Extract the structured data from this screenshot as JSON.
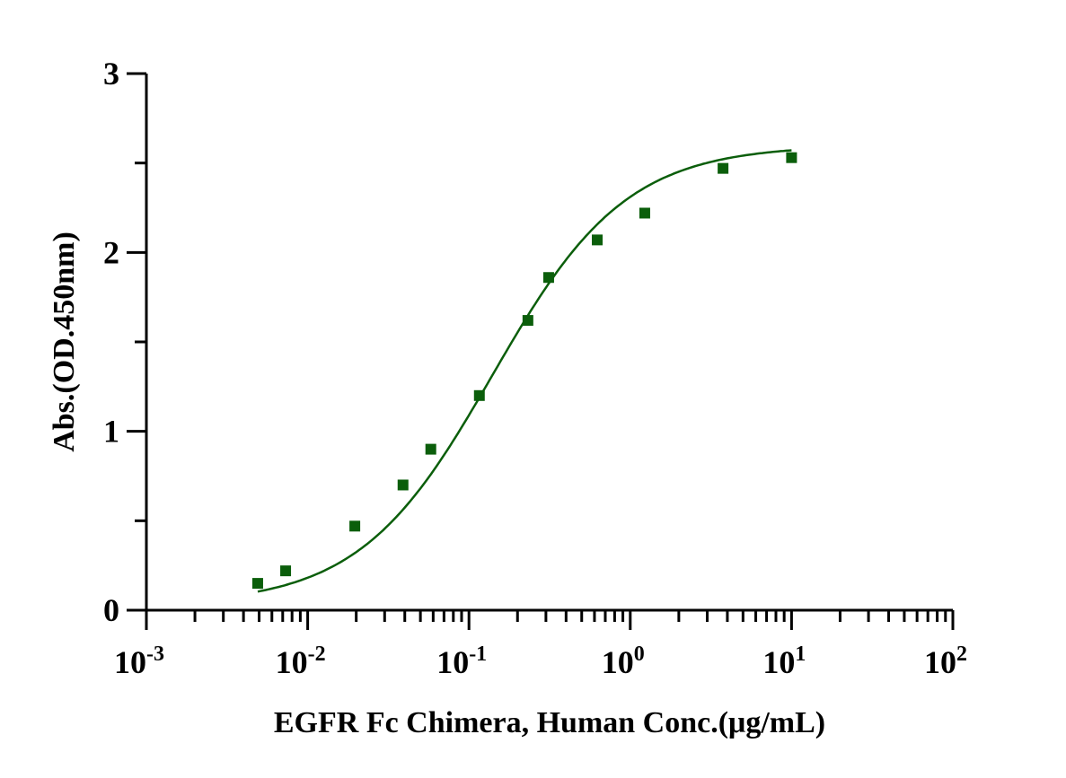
{
  "chart_data": {
    "type": "scatter",
    "title": "",
    "xlabel": "EGFR Fc Chimera, Human Conc.(μg/mL)",
    "ylabel": "Abs.(OD.450nm)",
    "xscale": "log",
    "xlim": [
      0.001,
      100
    ],
    "ylim": [
      0,
      3
    ],
    "x_ticks": [
      {
        "base": "10",
        "exp": "-3",
        "value": 0.001
      },
      {
        "base": "10",
        "exp": "-2",
        "value": 0.01
      },
      {
        "base": "10",
        "exp": "-1",
        "value": 0.1
      },
      {
        "base": "10",
        "exp": "0",
        "value": 1
      },
      {
        "base": "10",
        "exp": "1",
        "value": 10
      },
      {
        "base": "10",
        "exp": "2",
        "value": 100
      }
    ],
    "y_ticks": [
      "0",
      "1",
      "2",
      "3"
    ],
    "grid": false,
    "series": [
      {
        "name": "EGFR Fc Chimera, Human",
        "color": "#0b5e0b",
        "marker": "square",
        "x": [
          0.0049,
          0.0073,
          0.0196,
          0.039,
          0.058,
          0.116,
          0.232,
          0.312,
          0.624,
          1.23,
          3.76,
          10
        ],
        "y": [
          0.15,
          0.22,
          0.47,
          0.7,
          0.9,
          1.2,
          1.62,
          1.86,
          2.07,
          2.22,
          2.47,
          2.53
        ],
        "fit": {
          "model": "4PL",
          "bottom": 0.03,
          "top": 2.6,
          "ec50": 0.14,
          "hill": 1.05
        }
      }
    ]
  }
}
